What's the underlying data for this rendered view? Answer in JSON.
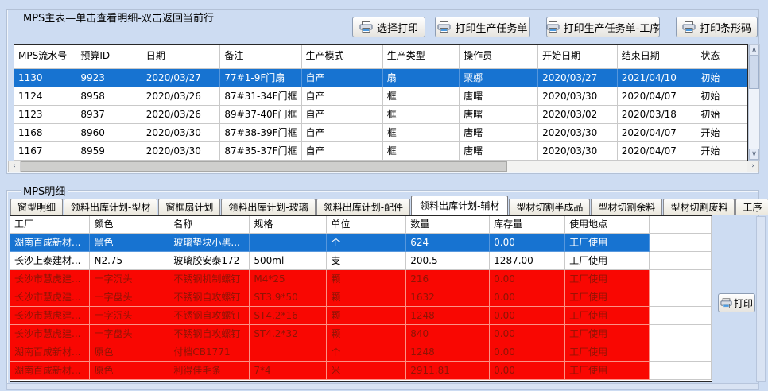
{
  "icons": {
    "printer": "printer-icon",
    "scroll_up": "∧",
    "scroll_down": "∨",
    "scroll_left": "‹",
    "scroll_right": "›"
  },
  "colors": {
    "page_bg": "#cddcf2",
    "selected_row_bg": "#1773d1",
    "selected_row_text": "#ffffff",
    "alert_row_bg": "#f90702",
    "alert_row_text": "#8e1405"
  },
  "top_panel": {
    "title": "MPS主表—单击查看明细-双击返回当前行",
    "buttons": [
      {
        "label": "选择打印"
      },
      {
        "label": "打印生产任务单"
      },
      {
        "label": "打印生产任务单-工序"
      },
      {
        "label": "打印条形码"
      }
    ],
    "table": {
      "columns": [
        "MPS流水号",
        "预算ID",
        "日期",
        "备注",
        "生产模式",
        "生产类型",
        "操作员",
        "开始日期",
        "结束日期",
        "状态"
      ],
      "rows": [
        {
          "state": "selected",
          "cells": [
            "1130",
            "9923",
            "2020/03/27",
            "77#1-9F门扇",
            "自产",
            "扇",
            "栗娜",
            "2020/03/27",
            "2021/04/10",
            "初始"
          ]
        },
        {
          "state": "normal",
          "cells": [
            "1124",
            "8958",
            "2020/03/26",
            "87#31-34F门框",
            "自产",
            "框",
            "唐曙",
            "2020/03/30",
            "2020/04/07",
            "初始"
          ]
        },
        {
          "state": "normal",
          "cells": [
            "1123",
            "8937",
            "2020/03/26",
            "89#37-40F门框",
            "自产",
            "框",
            "唐曙",
            "2020/03/02",
            "2020/03/18",
            "初始"
          ]
        },
        {
          "state": "normal",
          "cells": [
            "1168",
            "8960",
            "2020/03/30",
            "87#38-39F门框",
            "自产",
            "框",
            "唐曙",
            "2020/03/30",
            "2020/04/07",
            "开始"
          ]
        },
        {
          "state": "normal",
          "cells": [
            "1167",
            "8959",
            "2020/03/30",
            "87#35-37F门框",
            "自产",
            "框",
            "唐曙",
            "2020/03/30",
            "2020/04/07",
            "开始"
          ]
        }
      ]
    }
  },
  "bottom_panel": {
    "title": "MPS明细",
    "tabs": [
      {
        "label": "窗型明细"
      },
      {
        "label": "领料出库计划-型材"
      },
      {
        "label": "窗框扇计划"
      },
      {
        "label": "领料出库计划-玻璃"
      },
      {
        "label": "领料出库计划-配件"
      },
      {
        "label": "领料出库计划-辅材"
      },
      {
        "label": "型材切割半成品"
      },
      {
        "label": "型材切割余料"
      },
      {
        "label": "型材切割废料"
      },
      {
        "label": "工序"
      }
    ],
    "active_tab_index": 5,
    "print_button_label": "打印",
    "table": {
      "columns": [
        "工厂",
        "颜色",
        "名称",
        "规格",
        "单位",
        "数量",
        "库存量",
        "使用地点"
      ],
      "rows": [
        {
          "state": "selected",
          "cells": [
            "湖南百成新材...",
            "黑色",
            "玻璃垫块小黑...",
            "",
            "个",
            "624",
            "0.00",
            "工厂使用"
          ]
        },
        {
          "state": "normal",
          "cells": [
            "长沙上泰建材...",
            "N2.75",
            "玻璃胶安泰172",
            "500ml",
            "支",
            "200.5",
            "1287.00",
            "工厂使用"
          ]
        },
        {
          "state": "alert",
          "cells": [
            "长沙市慧虎建...",
            "十字沉头",
            "不锈钢机制螺钉",
            "M4*25",
            "颗",
            "216",
            "0.00",
            "工厂使用"
          ]
        },
        {
          "state": "alert",
          "cells": [
            "长沙市慧虎建...",
            "十字盘头",
            "不锈钢自攻螺钉",
            "ST3.9*50",
            "颗",
            "1632",
            "0.00",
            "工厂使用"
          ]
        },
        {
          "state": "alert",
          "cells": [
            "长沙市慧虎建...",
            "十字沉头",
            "不锈钢自攻螺钉",
            "ST4.2*16",
            "颗",
            "1248",
            "0.00",
            "工厂使用"
          ]
        },
        {
          "state": "alert",
          "cells": [
            "长沙市慧虎建...",
            "十字盘头",
            "不锈钢自攻螺钉",
            "ST4.2*32",
            "颗",
            "840",
            "0.00",
            "工厂使用"
          ]
        },
        {
          "state": "alert",
          "cells": [
            "湖南百成新材...",
            "原色",
            "付档CB1771",
            "",
            "个",
            "1248",
            "0.00",
            "工厂使用"
          ]
        },
        {
          "state": "alert",
          "cells": [
            "湖南百成新材...",
            "原色",
            "利得佳毛条",
            "7*4",
            "米",
            "2911.81",
            "0.00",
            "工厂使用"
          ]
        }
      ]
    }
  }
}
